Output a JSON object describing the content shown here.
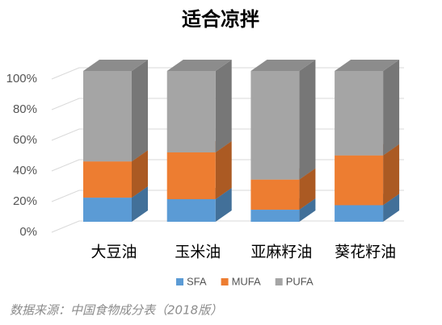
{
  "chart_data": {
    "type": "bar3d_stacked",
    "title": "适合凉拌",
    "categories": [
      "大豆油",
      "玉米油",
      "亚麻籽油",
      "葵花籽油"
    ],
    "series": [
      {
        "name": "SFA",
        "color": "#5b9bd5",
        "values": [
          16,
          15,
          8,
          11
        ]
      },
      {
        "name": "MUFA",
        "color": "#ed7d31",
        "values": [
          24,
          31,
          20,
          33
        ]
      },
      {
        "name": "PUFA",
        "color": "#a5a5a5",
        "values": [
          60,
          54,
          72,
          56
        ]
      }
    ],
    "ylim": [
      0,
      100
    ],
    "yticks": [
      {
        "value": 0,
        "label": "0%"
      },
      {
        "value": 20,
        "label": "20%"
      },
      {
        "value": 40,
        "label": "40%"
      },
      {
        "value": 60,
        "label": "60%"
      },
      {
        "value": 80,
        "label": "80%"
      },
      {
        "value": 100,
        "label": "100%"
      }
    ],
    "grid": true,
    "legend": "bottom",
    "source": "数据来源：中国食物成分表（2018版）"
  }
}
